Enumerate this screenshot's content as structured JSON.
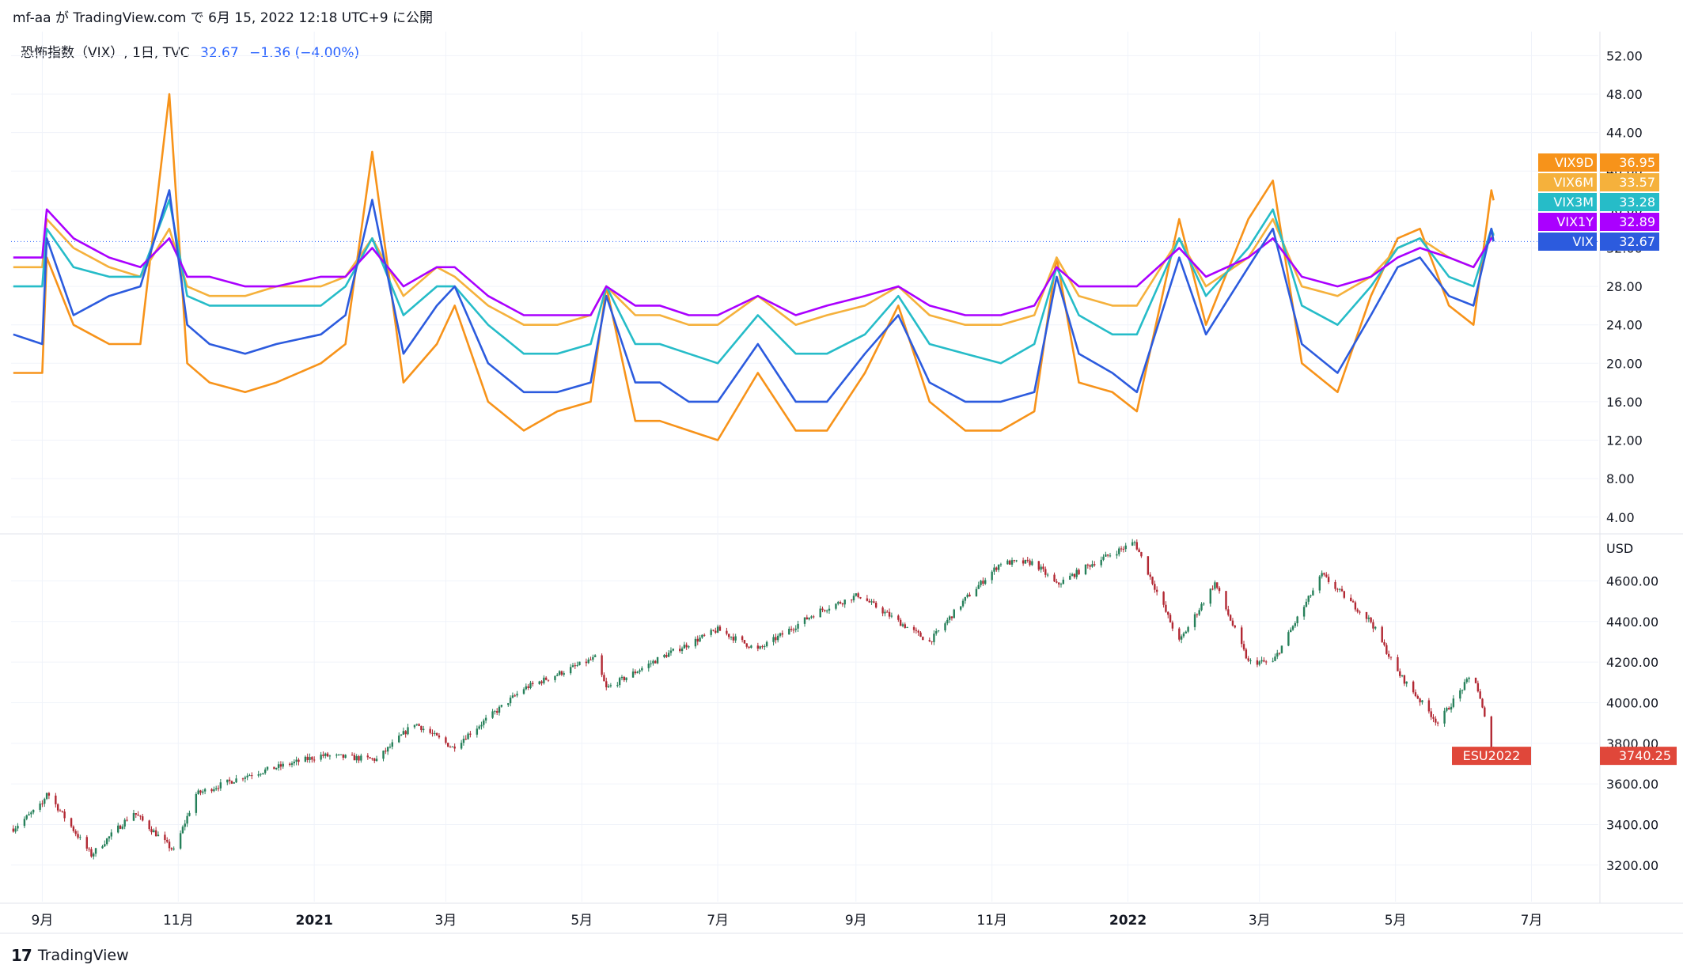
{
  "header": {
    "text": "mf-aa が TradingView.com で 6月 15, 2022 12:18 UTC+9 に公開"
  },
  "legend": {
    "symbol": "恐怖指数（VIX）, 1日, TVC",
    "value": "32.67",
    "change": "−1.36 (−4.00%)"
  },
  "footer": {
    "logo": "𝟭𝟳",
    "brand": "TradingView"
  },
  "colors": {
    "VIX": "#2c5bde",
    "VIX9D": "#f7931a",
    "VIX6M": "#f5b13c",
    "VIX3M": "#26bcc8",
    "VIX1Y": "#aa00ff",
    "up": "#26805a",
    "down": "#b22833",
    "es_tag": "#e0473a"
  },
  "chart_data": [
    {
      "type": "line",
      "title": "恐怖指数（VIX）, 1日, TVC",
      "x": [
        "2020-08-19",
        "2020-09-01",
        "2020-09-03",
        "2020-09-15",
        "2020-10-01",
        "2020-10-15",
        "2020-10-28",
        "2020-11-05",
        "2020-11-15",
        "2020-12-01",
        "2020-12-15",
        "2021-01-04",
        "2021-01-15",
        "2021-01-27",
        "2021-02-10",
        "2021-02-25",
        "2021-03-05",
        "2021-03-20",
        "2021-04-05",
        "2021-04-20",
        "2021-05-05",
        "2021-05-12",
        "2021-05-25",
        "2021-06-05",
        "2021-06-18",
        "2021-07-01",
        "2021-07-19",
        "2021-08-05",
        "2021-08-19",
        "2021-09-05",
        "2021-09-20",
        "2021-10-04",
        "2021-10-20",
        "2021-11-05",
        "2021-11-20",
        "2021-11-30",
        "2021-12-10",
        "2021-12-25",
        "2022-01-05",
        "2022-01-24",
        "2022-02-05",
        "2022-02-24",
        "2022-03-07",
        "2022-03-20",
        "2022-04-05",
        "2022-04-20",
        "2022-05-02",
        "2022-05-12",
        "2022-05-25",
        "2022-06-05",
        "2022-06-13",
        "2022-06-14"
      ],
      "series": [
        {
          "name": "VIX",
          "values": [
            23,
            22,
            33,
            25,
            27,
            28,
            38,
            24,
            22,
            21,
            22,
            23,
            25,
            37,
            21,
            26,
            28,
            20,
            17,
            17,
            18,
            27,
            18,
            18,
            16,
            16,
            22,
            16,
            16,
            21,
            25,
            18,
            16,
            16,
            17,
            29,
            21,
            19,
            17,
            31,
            23,
            30,
            34,
            22,
            19,
            25,
            30,
            31,
            27,
            26,
            34,
            32.67
          ]
        },
        {
          "name": "VIX9D",
          "values": [
            19,
            19,
            31,
            24,
            22,
            22,
            48,
            20,
            18,
            17,
            18,
            20,
            22,
            42,
            18,
            22,
            26,
            16,
            13,
            15,
            16,
            28,
            14,
            14,
            13,
            12,
            19,
            13,
            13,
            19,
            26,
            16,
            13,
            13,
            15,
            31,
            18,
            17,
            15,
            35,
            24,
            35,
            39,
            20,
            17,
            27,
            33,
            34,
            26,
            24,
            38,
            36.95
          ]
        },
        {
          "name": "VIX6M",
          "values": [
            30,
            30,
            35,
            32,
            30,
            29,
            34,
            28,
            27,
            27,
            28,
            28,
            29,
            33,
            27,
            30,
            29,
            26,
            24,
            24,
            25,
            28,
            25,
            25,
            24,
            24,
            27,
            24,
            25,
            26,
            28,
            25,
            24,
            24,
            25,
            31,
            27,
            26,
            26,
            33,
            28,
            31,
            35,
            28,
            27,
            29,
            32,
            33,
            31,
            30,
            33,
            33.57
          ]
        },
        {
          "name": "VIX3M",
          "values": [
            28,
            28,
            34,
            30,
            29,
            29,
            37,
            27,
            26,
            26,
            26,
            26,
            28,
            33,
            25,
            28,
            28,
            24,
            21,
            21,
            22,
            28,
            22,
            22,
            21,
            20,
            25,
            21,
            21,
            23,
            27,
            22,
            21,
            20,
            22,
            30,
            25,
            23,
            23,
            33,
            27,
            32,
            36,
            26,
            24,
            28,
            32,
            33,
            29,
            28,
            34,
            33.28
          ]
        },
        {
          "name": "VIX1Y",
          "values": [
            31,
            31,
            36,
            33,
            31,
            30,
            33,
            29,
            29,
            28,
            28,
            29,
            29,
            32,
            28,
            30,
            30,
            27,
            25,
            25,
            25,
            28,
            26,
            26,
            25,
            25,
            27,
            25,
            26,
            27,
            28,
            26,
            25,
            25,
            26,
            30,
            28,
            28,
            28,
            32,
            29,
            31,
            33,
            29,
            28,
            29,
            31,
            32,
            31,
            30,
            33,
            32.89
          ]
        }
      ],
      "current_tags": [
        {
          "name": "VIX9D",
          "value": "36.95"
        },
        {
          "name": "VIX6M",
          "value": "33.57"
        },
        {
          "name": "VIX3M",
          "value": "33.28"
        },
        {
          "name": "VIX1Y",
          "value": "32.89"
        },
        {
          "name": "VIX",
          "value": "32.67"
        }
      ],
      "y_ticks": [
        "52.00",
        "48.00",
        "44.00",
        "40.00",
        "36.00",
        "32.00",
        "28.00",
        "24.00",
        "20.00",
        "16.00",
        "12.00",
        "8.00",
        "4.00"
      ],
      "ylim": [
        2.5,
        54.5
      ]
    },
    {
      "type": "candlestick",
      "name": "ESU2022",
      "unit": "USD",
      "current_value": "3740.25",
      "x": [
        "2020-08-19",
        "2020-09-01",
        "2020-09-03",
        "2020-09-23",
        "2020-10-12",
        "2020-10-30",
        "2020-11-09",
        "2020-12-01",
        "2021-01-04",
        "2021-01-29",
        "2021-02-15",
        "2021-03-04",
        "2021-04-05",
        "2021-05-07",
        "2021-05-12",
        "2021-06-05",
        "2021-07-01",
        "2021-07-19",
        "2021-08-15",
        "2021-09-02",
        "2021-09-20",
        "2021-10-04",
        "2021-10-20",
        "2021-11-05",
        "2021-11-20",
        "2021-11-30",
        "2021-12-15",
        "2022-01-04",
        "2022-01-24",
        "2022-02-09",
        "2022-02-24",
        "2022-03-07",
        "2022-03-29",
        "2022-04-20",
        "2022-05-02",
        "2022-05-20",
        "2022-06-05",
        "2022-06-14"
      ],
      "values": [
        3380,
        3500,
        3560,
        3250,
        3460,
        3270,
        3550,
        3640,
        3740,
        3720,
        3900,
        3780,
        4070,
        4220,
        4070,
        4220,
        4360,
        4260,
        4450,
        4530,
        4400,
        4300,
        4510,
        4690,
        4690,
        4580,
        4680,
        4790,
        4300,
        4590,
        4200,
        4200,
        4630,
        4400,
        4150,
        3900,
        4150,
        3740.25
      ],
      "y_ticks": [
        "4600.00",
        "4400.00",
        "4200.00",
        "4000.00",
        "3800.00",
        "3600.00",
        "3400.00",
        "3200.00"
      ],
      "ylim": [
        3020,
        4820
      ]
    }
  ],
  "x_axis": {
    "ticks": [
      {
        "label": "9月",
        "date": "2020-09-01",
        "bold": false
      },
      {
        "label": "11月",
        "date": "2020-11-01",
        "bold": false
      },
      {
        "label": "2021",
        "date": "2021-01-01",
        "bold": true
      },
      {
        "label": "3月",
        "date": "2021-03-01",
        "bold": false
      },
      {
        "label": "5月",
        "date": "2021-05-01",
        "bold": false
      },
      {
        "label": "7月",
        "date": "2021-07-01",
        "bold": false
      },
      {
        "label": "9月",
        "date": "2021-09-01",
        "bold": false
      },
      {
        "label": "11月",
        "date": "2021-11-01",
        "bold": false
      },
      {
        "label": "2022",
        "date": "2022-01-01",
        "bold": true
      },
      {
        "label": "3月",
        "date": "2022-03-01",
        "bold": false
      },
      {
        "label": "5月",
        "date": "2022-05-01",
        "bold": false
      },
      {
        "label": "7月",
        "date": "2022-07-01",
        "bold": false
      }
    ],
    "range": [
      "2020-08-18",
      "2022-07-31"
    ]
  }
}
